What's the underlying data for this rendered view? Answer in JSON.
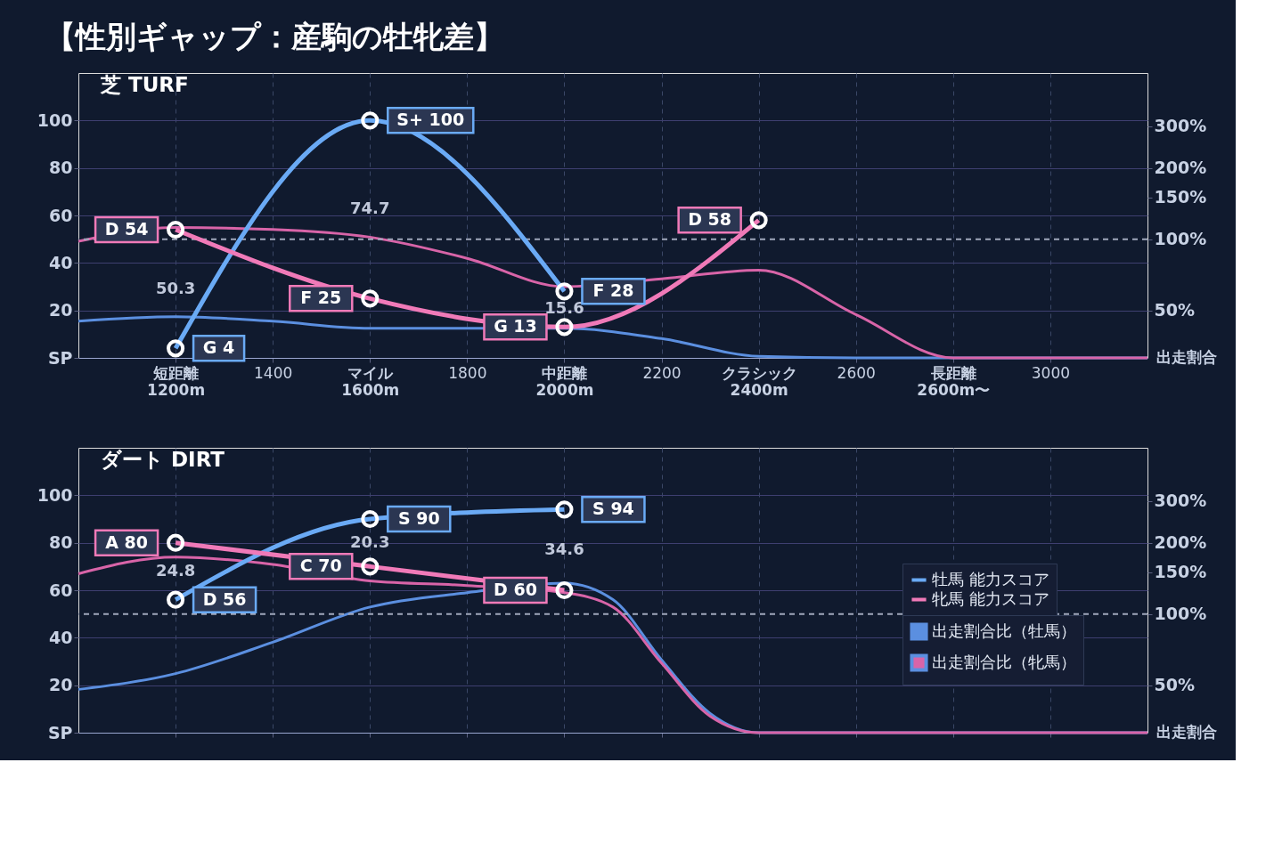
{
  "chart_data": [
    {
      "type": "line",
      "title": "【性別ギャップ：産駒の牡牝差】",
      "subtitle": "芝 TURF",
      "xlim": [
        1000,
        3200
      ],
      "xticks": [
        {
          "value": 1200,
          "label": "短距離\n1200m"
        },
        1400,
        {
          "value": 1600,
          "label": "マイル\n1600m"
        },
        1800,
        {
          "value": 2000,
          "label": "中距離\n2000m"
        },
        2200,
        {
          "value": 2400,
          "label": "クラシック\n2400m"
        },
        2600,
        {
          "value": 2800,
          "label": "長距離\n2600m〜"
        },
        3000
      ],
      "ylim": [
        0,
        120
      ],
      "yticks": [
        {
          "value": 0,
          "label": "SP"
        },
        20,
        40,
        60,
        80,
        100
      ],
      "y2lim": [
        31.5,
        504
      ],
      "y2ticks": [
        {
          "value": 50,
          "label": "50%"
        },
        {
          "value": 100,
          "label": "100%"
        },
        {
          "value": 150,
          "label": "150%"
        },
        {
          "value": 200,
          "label": "200%"
        },
        {
          "value": 300,
          "label": "300%"
        }
      ],
      "y2label": "出走割合",
      "log": "y2",
      "grid": true,
      "legend": false,
      "marker": "circle",
      "line_style": "solid",
      "series": [
        {
          "type": "area",
          "axis": "y2",
          "marker": "none",
          "color": "#5b8fe0",
          "x": [
            1000,
            1200,
            1400,
            1600,
            1800,
            2000,
            2200,
            2400,
            2600,
            2800,
            3000,
            3200
          ],
          "values": [
            45,
            47,
            45,
            42,
            42,
            42,
            38,
            32,
            31.5,
            31.5,
            31.5,
            31.5
          ]
        },
        {
          "type": "area",
          "axis": "y2",
          "marker": "none",
          "color": "#d864a8",
          "x": [
            1000,
            1200,
            1400,
            1600,
            1800,
            2000,
            2200,
            2400,
            2600,
            2800,
            3000,
            3200
          ],
          "values": [
            98,
            112,
            110,
            102,
            83,
            63,
            68,
            74,
            48,
            31.5,
            31.5,
            31.5
          ]
        },
        {
          "type": "line",
          "color": "#6aaaf5",
          "x": [
            1200,
            1600,
            2000
          ],
          "values": [
            4,
            100,
            28
          ],
          "value_labels": [
            "G 4",
            "S+ 100",
            "F 28"
          ]
        },
        {
          "type": "line",
          "color": "#f07ab8",
          "x": [
            1200,
            1600,
            2000,
            2400
          ],
          "values": [
            54,
            25,
            13,
            58
          ],
          "value_labels": [
            "D 54",
            "F 25",
            "G 13",
            "D 58"
          ]
        }
      ],
      "ref_lines": [
        {
          "axis": "y2",
          "value": 100,
          "line_style": "dashed"
        }
      ],
      "annotations": [
        "50.3",
        "74.7",
        "15.6"
      ]
    },
    {
      "type": "line",
      "subtitle": "ダート DIRT",
      "xlim": [
        1000,
        3200
      ],
      "xticks": [
        {
          "value": 1200,
          "label": null
        },
        {
          "value": 1400,
          "label": null
        },
        {
          "value": 1600,
          "label": null
        },
        {
          "value": 1800,
          "label": null
        },
        {
          "value": 2000,
          "label": null
        },
        {
          "value": 2200,
          "label": null
        },
        {
          "value": 2400,
          "label": null
        },
        {
          "value": 2600,
          "label": null
        },
        {
          "value": 2800,
          "label": null
        },
        {
          "value": 3000,
          "label": null
        }
      ],
      "ylim": [
        0,
        120
      ],
      "yticks": [
        {
          "value": 0,
          "label": "SP"
        },
        20,
        40,
        60,
        80,
        100
      ],
      "y2lim": [
        31.5,
        504
      ],
      "y2ticks": [
        {
          "value": 50,
          "label": "50%"
        },
        {
          "value": 100,
          "label": "100%"
        },
        {
          "value": 150,
          "label": "150%"
        },
        {
          "value": 200,
          "label": "200%"
        },
        {
          "value": 300,
          "label": "300%"
        }
      ],
      "y2label": "出走割合",
      "log": "y2",
      "grid": true,
      "legend": "right",
      "tick_labels": "y",
      "marker": "circle",
      "line_style": "solid",
      "series": [
        {
          "type": "area",
          "axis": "y2",
          "marker": "none",
          "name": "出走割合比（牡馬）",
          "color": "#5b8fe0",
          "x": [
            1000,
            1200,
            1400,
            1600,
            1800,
            2000,
            2100,
            2200,
            2300,
            2400,
            2600,
            2800,
            3000,
            3200
          ],
          "values": [
            48,
            56,
            76,
            107,
            123,
            135,
            115,
            64,
            38,
            31.5,
            31.5,
            31.5,
            31.5,
            31.5
          ]
        },
        {
          "type": "area",
          "axis": "y2",
          "marker": "none",
          "name": "出走割合比（牝馬）",
          "color": "#d864a8",
          "x": [
            1000,
            1200,
            1400,
            1600,
            1800,
            2000,
            2100,
            2200,
            2300,
            2400,
            2600,
            2800,
            3000,
            3200
          ],
          "values": [
            148,
            174,
            162,
            138,
            132,
            123,
            107,
            62,
            37,
            31.5,
            31.5,
            31.5,
            31.5,
            31.5
          ]
        },
        {
          "type": "line",
          "name": "牡馬 能力スコア",
          "color": "#6aaaf5",
          "x": [
            1200,
            1600,
            2000
          ],
          "values": [
            56,
            90,
            94
          ],
          "value_labels": [
            "D 56",
            "S 90",
            "S 94"
          ]
        },
        {
          "type": "line",
          "name": "牝馬 能力スコア",
          "color": "#f07ab8",
          "x": [
            1200,
            1600,
            2000
          ],
          "values": [
            80,
            70,
            60
          ],
          "value_labels": [
            "A 80",
            "C 70",
            "D 60"
          ]
        }
      ],
      "ref_lines": [
        {
          "axis": "y2",
          "value": 100,
          "line_style": "dashed"
        }
      ],
      "annotations": [
        "24.8",
        "20.3",
        "34.6"
      ]
    }
  ]
}
